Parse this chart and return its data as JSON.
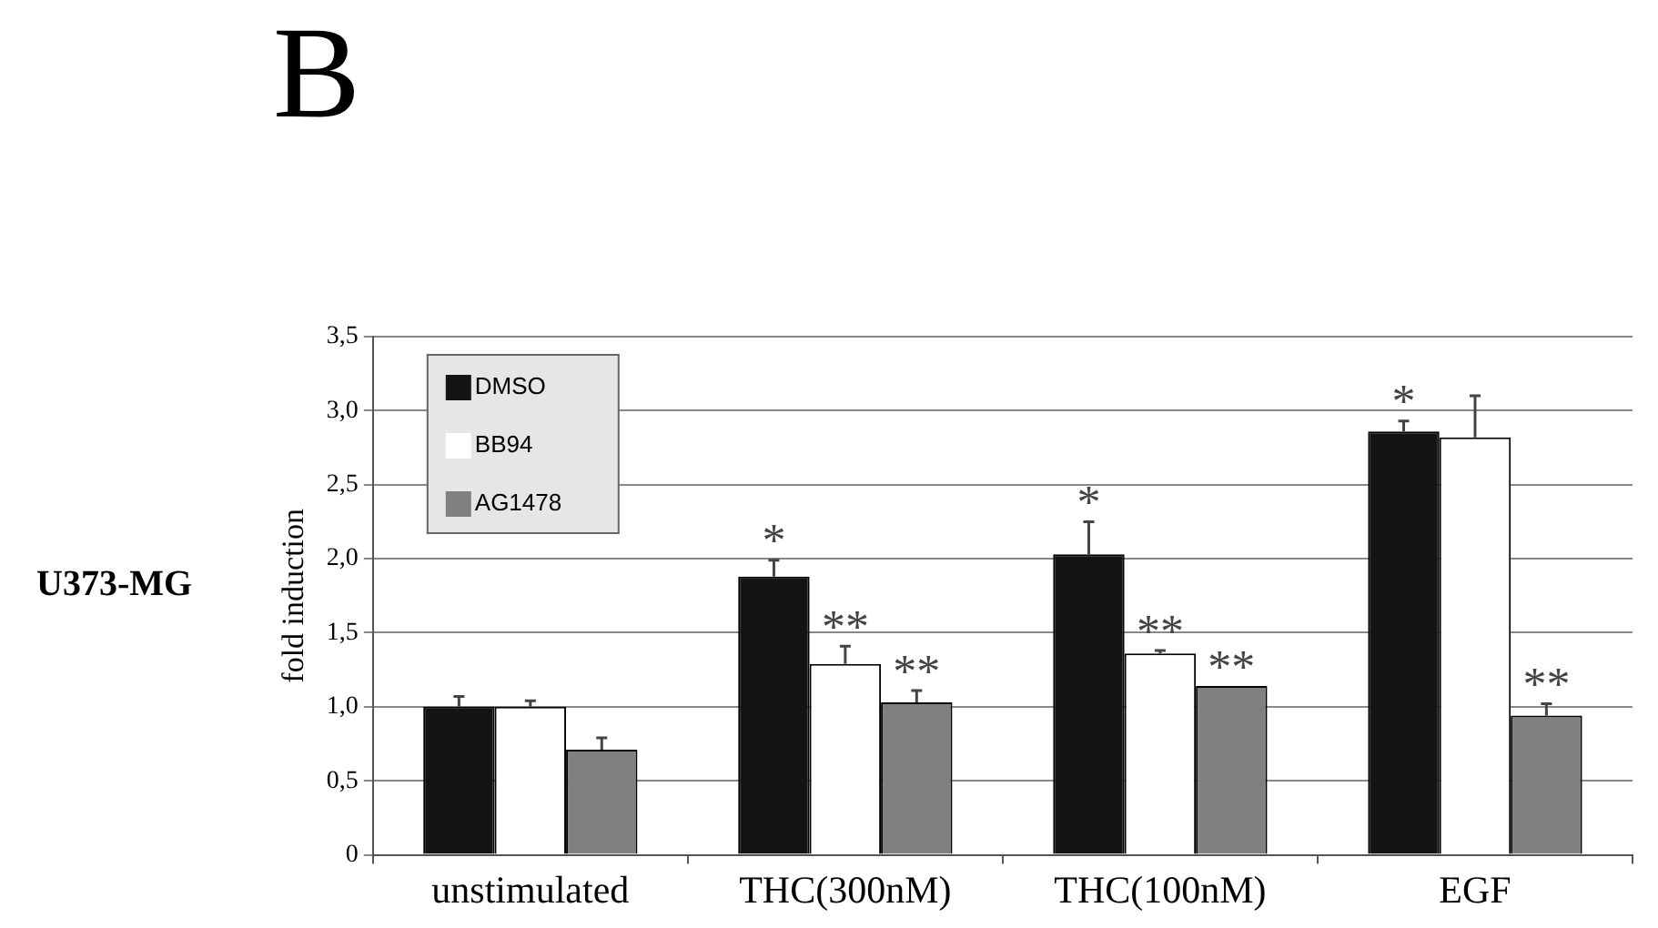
{
  "chart_data": {
    "type": "bar",
    "title": "B",
    "ylabel": "fold induction",
    "categories": [
      "unstimulated",
      "THC(300nM)",
      "THC(100nM)",
      "EGF"
    ],
    "series": [
      {
        "name": "DMSO",
        "color": "#141414",
        "values": [
          1.0,
          1.88,
          2.03,
          2.86
        ],
        "errors": [
          [
            1.0,
            1.07
          ],
          [
            1.88,
            1.99
          ],
          [
            2.03,
            2.25
          ],
          [
            2.86,
            2.93
          ]
        ],
        "value_labels": [
          null,
          "*",
          "*",
          "*"
        ]
      },
      {
        "name": "BB94",
        "color": "#ffffff",
        "values": [
          1.0,
          1.29,
          1.36,
          2.82
        ],
        "errors": [
          [
            1.0,
            1.04
          ],
          [
            1.29,
            1.41
          ],
          [
            1.36,
            1.38
          ],
          [
            2.82,
            3.1
          ]
        ],
        "value_labels": [
          null,
          "**",
          "**",
          null
        ]
      },
      {
        "name": "AG1478",
        "color": "#808080",
        "values": [
          0.71,
          1.03,
          1.14,
          0.94
        ],
        "errors": [
          [
            0.71,
            0.79
          ],
          [
            1.03,
            1.11
          ],
          null,
          [
            0.94,
            1.02
          ]
        ],
        "value_labels": [
          null,
          "**",
          "**",
          "**"
        ]
      }
    ],
    "ylim": [
      0,
      3.5
    ],
    "yticks": [
      0,
      {
        "value": 0.5,
        "label": "0,5"
      },
      {
        "value": 1,
        "label": "1,0"
      },
      {
        "value": 1.5,
        "label": "1,5"
      },
      {
        "value": 2,
        "label": "2,0"
      },
      {
        "value": 2.5,
        "label": "2,5"
      },
      {
        "value": 3,
        "label": "3,0"
      },
      {
        "value": 3.5,
        "label": "3,5"
      }
    ],
    "grid": "y",
    "legend": "top left",
    "annotations": [
      "U373-MG"
    ]
  }
}
